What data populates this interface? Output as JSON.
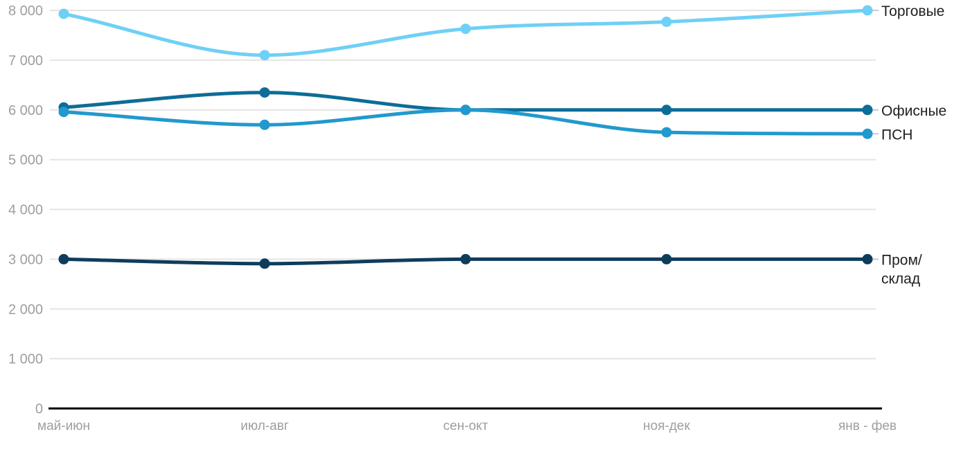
{
  "chart_data": {
    "type": "line",
    "title": "",
    "xlabel": "",
    "ylabel": "",
    "categories": [
      "май-июн",
      "июл-авг",
      "сен-окт",
      "ноя-дек",
      "янв - фев"
    ],
    "series": [
      {
        "name": "Торговые",
        "label_lines": [
          "Торговые"
        ],
        "color": "#6ED0F6",
        "values": [
          7930,
          7100,
          7630,
          7770,
          8000
        ]
      },
      {
        "name": "Офисные",
        "label_lines": [
          "Офисные"
        ],
        "color": "#0D6D97",
        "values": [
          6050,
          6350,
          6000,
          6000,
          6000
        ]
      },
      {
        "name": "ПСН",
        "label_lines": [
          "ПСН"
        ],
        "color": "#2199CE",
        "values": [
          5960,
          5700,
          6000,
          5550,
          5520
        ]
      },
      {
        "name": "Пром/склад",
        "label_lines": [
          "Пром/",
          "склад"
        ],
        "color": "#0E3D5C",
        "values": [
          3000,
          2910,
          3000,
          3000,
          3000
        ]
      }
    ],
    "ylim": [
      0,
      8000
    ],
    "y_ticks": [
      0,
      1000,
      2000,
      3000,
      4000,
      5000,
      6000,
      7000,
      8000
    ],
    "grid": true,
    "legend_position": "end-of-line labels, right side",
    "style_colors": {
      "axis_text": "#9E9E9E",
      "series_label_text": "#212121",
      "gridline": "#E4E4E4",
      "baseline": "#000000",
      "leader_line": "#C9C9C9",
      "background": "#FFFFFF"
    }
  }
}
